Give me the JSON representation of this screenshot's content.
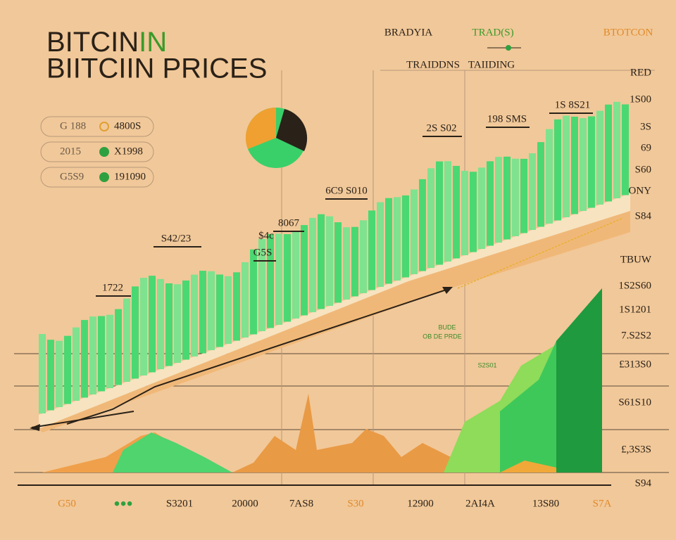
{
  "title": {
    "line1": "BITCIN",
    "line1_accent": "IN",
    "line2": "BIITCIIN PRICES"
  },
  "legend_top": {
    "items": [
      "BRADYIA",
      "TRAD(S)",
      "BTOTCON"
    ],
    "sub": [
      "TRAIDDNS",
      "TAIIDING"
    ]
  },
  "legend_left": [
    {
      "label": "G 188",
      "value": "4800S"
    },
    {
      "label": "2015",
      "value": "X1998"
    },
    {
      "label": "G5S9",
      "value": "191090"
    }
  ],
  "annotations": [
    "1S 8S21",
    "198 SMS",
    "2S S02",
    "6C9 S010",
    "8067",
    "S42/23",
    "$4c",
    "G5S",
    "1722"
  ],
  "notes": [
    "BUDE",
    "OB DE PRDE",
    "S2S01"
  ],
  "right_axis": [
    "RED",
    "1S00",
    "3S",
    "69",
    "S60",
    "ONY",
    "S84",
    "TBUW",
    "1S2S60",
    "1S1201",
    "7.S2S2",
    "£313S0",
    "S61S10",
    "£,3S3S",
    "S94"
  ],
  "bottom_axis": [
    "G50",
    "●●●",
    "S3201",
    "20000",
    "7AS8",
    "S30",
    "12900",
    "2AI4A",
    "13S80",
    "S7A"
  ]
}
